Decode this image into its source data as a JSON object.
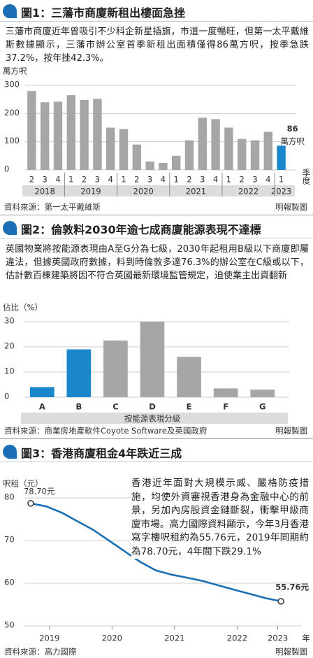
{
  "chart_data": [
    {
      "type": "bar",
      "title": "圖1：三藩市商廈新租出樓面急挫",
      "description": "三藩市商廈近年曾吸引不少科企新星插旗，市道一度暢旺，但第一太平戴維斯數據顯示，三藩市辦公室首季新租出面積僅得86萬方呎，按季急跌37.2%，按年挫42.3%。",
      "ylabel": "萬方呎",
      "xlabel": "季度",
      "groups": [
        {
          "label": "2018",
          "categories": [
            "2",
            "3",
            "4"
          ]
        },
        {
          "label": "2019",
          "categories": [
            "1",
            "2",
            "3",
            "4"
          ]
        },
        {
          "label": "2020",
          "categories": [
            "1",
            "2",
            "3",
            "4"
          ]
        },
        {
          "label": "2021",
          "categories": [
            "1",
            "2",
            "3",
            "4"
          ]
        },
        {
          "label": "2022",
          "categories": [
            "1",
            "2",
            "3",
            "4"
          ]
        },
        {
          "label": "2023",
          "categories": [
            "1"
          ]
        }
      ],
      "values": [
        280,
        240,
        242,
        265,
        248,
        252,
        150,
        145,
        90,
        30,
        25,
        50,
        105,
        185,
        180,
        150,
        110,
        105,
        135,
        86
      ],
      "colors": [
        "#a6a6a6",
        "#a6a6a6",
        "#a6a6a6",
        "#a6a6a6",
        "#a6a6a6",
        "#a6a6a6",
        "#a6a6a6",
        "#a6a6a6",
        "#a6a6a6",
        "#a6a6a6",
        "#a6a6a6",
        "#a6a6a6",
        "#a6a6a6",
        "#a6a6a6",
        "#a6a6a6",
        "#a6a6a6",
        "#a6a6a6",
        "#a6a6a6",
        "#a6a6a6",
        "#1a87cc"
      ],
      "value_labels": [
        null,
        null,
        null,
        null,
        null,
        null,
        null,
        null,
        null,
        null,
        null,
        null,
        null,
        null,
        null,
        null,
        null,
        null,
        null,
        "86"
      ],
      "value_label_unit": "萬方呎",
      "ylim": [
        0,
        300
      ],
      "yticks": [
        0,
        100,
        200,
        300
      ],
      "grid": true,
      "source": "資料來源：第一太平戴維斯",
      "credit": "明報製圖"
    },
    {
      "type": "bar",
      "title": "圖2：倫敦料2030年逾七成商廈能源表現不達標",
      "description": "英國物業將按能源表現由A至G分為七級，2030年起租用B級以下商廈即屬違法，但據英國政府數據，料到時倫敦多達76.3%的辦公室在C級或以下，估計數百棟建築將因不符合英國最新環境監管規定，迫使業主出資翻新",
      "ylabel": "佔比（%）",
      "xlabel": "按能源表現分級",
      "categories": [
        "A",
        "B",
        "C",
        "D",
        "E",
        "F",
        "G"
      ],
      "values": [
        4,
        19,
        22.5,
        30,
        16,
        3.5,
        3
      ],
      "colors": [
        "#1a87cc",
        "#1a87cc",
        "#a6a6a6",
        "#a6a6a6",
        "#a6a6a6",
        "#a6a6a6",
        "#a6a6a6"
      ],
      "ylim": [
        0,
        30
      ],
      "yticks": [
        0,
        10,
        20,
        30
      ],
      "grid": true,
      "source": "資料來源：商業房地產軟件Coyote Software及英國政府",
      "credit": "明報製圖"
    },
    {
      "type": "line",
      "title": "圖3：香港商廈租金4年跌近三成",
      "description": "香港近年面對大規模示威、嚴格防疫措施，均使外資審視香港身為金融中心的前景，另加內房股資金鏈斷裂，衝擊甲級商廈市場。高力國際資料顯示，今年3月香港寫字樓呎租約為55.76元，2019年同期約為78.70元，4年間下跌29.1%",
      "ylabel": "呎租（元）",
      "xlabel": "年",
      "x": [
        2019.2,
        2019.45,
        2019.7,
        2019.95,
        2020.2,
        2020.45,
        2020.7,
        2020.95,
        2021.2,
        2021.45,
        2021.7,
        2021.95,
        2022.2,
        2022.45,
        2022.7,
        2022.95,
        2023.2
      ],
      "values": [
        78.7,
        78.0,
        76.5,
        74.5,
        72.5,
        70.0,
        67.5,
        65.0,
        63.0,
        62.0,
        61.3,
        60.5,
        59.5,
        58.5,
        57.5,
        56.5,
        55.76
      ],
      "value_labels": [
        "78.70元",
        null,
        null,
        null,
        null,
        null,
        null,
        null,
        null,
        null,
        null,
        null,
        null,
        null,
        null,
        null,
        "55.76元"
      ],
      "color": "#1a6fb5",
      "xlim": [
        2019.1,
        2023.4
      ],
      "xticks": [
        {
          "value": 2019.5,
          "label": "2019"
        },
        {
          "value": 2020.5,
          "label": "2020"
        },
        {
          "value": 2021.5,
          "label": "2021"
        },
        {
          "value": 2022.5,
          "label": "2022"
        },
        {
          "value": 2023.15,
          "label": "2023"
        }
      ],
      "ylim": [
        50,
        80
      ],
      "yticks": [
        50,
        60,
        70,
        80
      ],
      "grid": true,
      "source": "資料來源：高力國際",
      "credit": "明報製圖"
    }
  ]
}
